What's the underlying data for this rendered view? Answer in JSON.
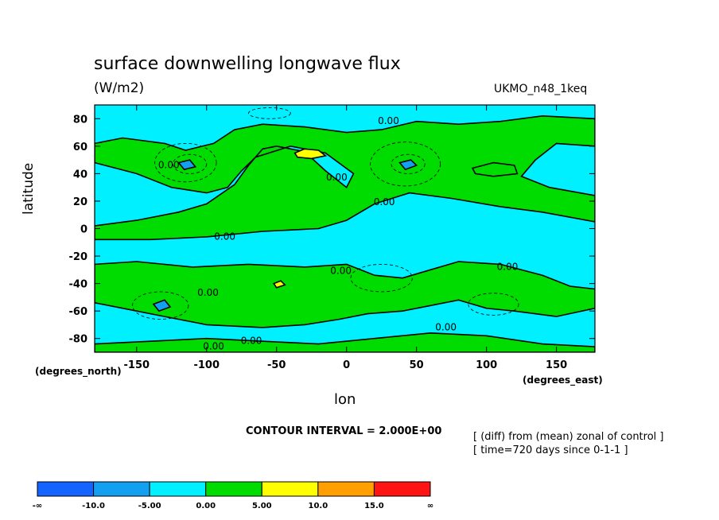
{
  "chart_data": {
    "type": "heatmap",
    "title": "surface downwelling longwave flux",
    "units": "(W/m2)",
    "model": "UKMO_n48_1keq",
    "xlabel": "lon",
    "ylabel": "latitude",
    "x_unit_label": "(degrees_east)",
    "y_unit_label": "(degrees_north)",
    "xlim": [
      -180,
      177.5
    ],
    "ylim": [
      -90,
      90
    ],
    "x_ticks": [
      -150,
      -100,
      -50,
      0,
      50,
      100,
      150
    ],
    "x_tick_labels": [
      "-150",
      "-100",
      "-50",
      "0",
      "50",
      "100",
      "150"
    ],
    "y_ticks": [
      80,
      60,
      40,
      20,
      0,
      -20,
      -40,
      -60,
      -80
    ],
    "y_tick_labels": [
      "80",
      "60",
      "40",
      "20",
      "0",
      "-20",
      "-40",
      "-60",
      "-80"
    ],
    "contour_interval_text": "CONTOUR INTERVAL = 2.000E+00",
    "notes": [
      "[ (diff) from (mean) zonal of control ]",
      "[ time=720 days since 0-1-1 ]"
    ],
    "contour_label": "0.00",
    "colorbar": {
      "bins": [
        {
          "color": "#1464ff",
          "range": [
            "-∞",
            "-10.0"
          ]
        },
        {
          "color": "#14a0f0",
          "range": [
            "-10.0",
            "-5.00"
          ]
        },
        {
          "color": "#00f0ff",
          "range": [
            "-5.00",
            "0.00"
          ]
        },
        {
          "color": "#00dc00",
          "range": [
            "0.00",
            "5.00"
          ]
        },
        {
          "color": "#ffff00",
          "range": [
            "5.00",
            "10.0"
          ]
        },
        {
          "color": "#ffa000",
          "range": [
            "10.0",
            "15.0"
          ]
        },
        {
          "color": "#ff1414",
          "range": [
            "15.0",
            "∞"
          ]
        }
      ],
      "labels": [
        "-∞",
        "-10.0",
        "-5.00",
        "0.00",
        "5.00",
        "10.0",
        "15.0",
        "∞"
      ]
    },
    "regions": [
      {
        "level": "positive",
        "value": 2.5,
        "pts": [
          [
            -180,
            62
          ],
          [
            -160,
            66
          ],
          [
            -130,
            62
          ],
          [
            -115,
            57
          ],
          [
            -95,
            62
          ],
          [
            -80,
            72
          ],
          [
            -60,
            76
          ],
          [
            -30,
            74
          ],
          [
            0,
            70
          ],
          [
            25,
            72
          ],
          [
            50,
            78
          ],
          [
            80,
            76
          ],
          [
            110,
            78
          ],
          [
            140,
            82
          ],
          [
            177.5,
            80
          ],
          [
            177.5,
            60
          ],
          [
            150,
            62
          ],
          [
            135,
            50
          ],
          [
            125,
            38
          ],
          [
            145,
            30
          ],
          [
            177.5,
            24
          ],
          [
            177.5,
            5
          ],
          [
            140,
            12
          ],
          [
            110,
            16
          ],
          [
            75,
            22
          ],
          [
            45,
            26
          ],
          [
            20,
            18
          ],
          [
            0,
            6
          ],
          [
            -20,
            0
          ],
          [
            -60,
            -2
          ],
          [
            -100,
            -6
          ],
          [
            -140,
            -8
          ],
          [
            -180,
            -8
          ],
          [
            -180,
            2
          ],
          [
            -150,
            6
          ],
          [
            -120,
            12
          ],
          [
            -100,
            18
          ],
          [
            -80,
            32
          ],
          [
            -70,
            46
          ],
          [
            -60,
            58
          ],
          [
            -50,
            60
          ],
          [
            -30,
            56
          ],
          [
            -15,
            42
          ],
          [
            0,
            30
          ],
          [
            5,
            40
          ],
          [
            -15,
            55
          ],
          [
            -40,
            60
          ],
          [
            -65,
            52
          ],
          [
            -75,
            42
          ],
          [
            -85,
            30
          ],
          [
            -100,
            26
          ],
          [
            -125,
            30
          ],
          [
            -150,
            40
          ],
          [
            -180,
            48
          ]
        ]
      },
      {
        "level": "positive",
        "value": 2.5,
        "pts": [
          [
            -180,
            -26
          ],
          [
            -150,
            -24
          ],
          [
            -110,
            -28
          ],
          [
            -70,
            -26
          ],
          [
            -30,
            -28
          ],
          [
            0,
            -26
          ],
          [
            10,
            -30
          ],
          [
            20,
            -34
          ],
          [
            40,
            -36
          ],
          [
            60,
            -30
          ],
          [
            80,
            -24
          ],
          [
            110,
            -26
          ],
          [
            140,
            -34
          ],
          [
            160,
            -42
          ],
          [
            177.5,
            -44
          ],
          [
            177.5,
            -58
          ],
          [
            150,
            -64
          ],
          [
            120,
            -60
          ],
          [
            100,
            -58
          ],
          [
            80,
            -52
          ],
          [
            60,
            -56
          ],
          [
            40,
            -60
          ],
          [
            15,
            -62
          ],
          [
            -5,
            -66
          ],
          [
            -30,
            -70
          ],
          [
            -60,
            -72
          ],
          [
            -100,
            -70
          ],
          [
            -130,
            -64
          ],
          [
            -160,
            -58
          ],
          [
            -180,
            -54
          ]
        ]
      },
      {
        "level": "positive",
        "value": 2.5,
        "pts": [
          [
            -180,
            -84
          ],
          [
            -140,
            -82
          ],
          [
            -100,
            -80
          ],
          [
            -60,
            -82
          ],
          [
            -20,
            -84
          ],
          [
            20,
            -80
          ],
          [
            60,
            -76
          ],
          [
            100,
            -78
          ],
          [
            140,
            -84
          ],
          [
            177.5,
            -86
          ],
          [
            177.5,
            -90
          ],
          [
            -180,
            -90
          ]
        ]
      },
      {
        "level": "positive",
        "value": 2.5,
        "pts": [
          [
            90,
            44
          ],
          [
            105,
            48
          ],
          [
            120,
            46
          ],
          [
            122,
            40
          ],
          [
            105,
            38
          ],
          [
            92,
            40
          ]
        ]
      },
      {
        "level": "high",
        "value": 7.5,
        "pts": [
          [
            -37,
            55
          ],
          [
            -30,
            58
          ],
          [
            -20,
            57
          ],
          [
            -15,
            53
          ],
          [
            -25,
            51
          ],
          [
            -35,
            52
          ]
        ]
      },
      {
        "level": "high",
        "value": 7.5,
        "pts": [
          [
            -52,
            -40
          ],
          [
            -47,
            -38
          ],
          [
            -44,
            -41
          ],
          [
            -50,
            -43
          ]
        ]
      },
      {
        "level": "low",
        "value": -7.5,
        "pts": [
          [
            -120,
            48
          ],
          [
            -112,
            50
          ],
          [
            -108,
            45
          ],
          [
            -116,
            43
          ]
        ]
      },
      {
        "level": "low",
        "value": -7.5,
        "pts": [
          [
            38,
            48
          ],
          [
            46,
            50
          ],
          [
            50,
            46
          ],
          [
            42,
            43
          ]
        ]
      },
      {
        "level": "low",
        "value": -7.5,
        "pts": [
          [
            -138,
            -55
          ],
          [
            -130,
            -52
          ],
          [
            -126,
            -57
          ],
          [
            -134,
            -60
          ]
        ]
      }
    ],
    "zero_contour_labels": [
      {
        "lon": 30,
        "lat": 76
      },
      {
        "lon": -127,
        "lat": 44
      },
      {
        "lon": -7,
        "lat": 35
      },
      {
        "lon": 27,
        "lat": 17
      },
      {
        "lon": -87,
        "lat": -8
      },
      {
        "lon": -4,
        "lat": -33
      },
      {
        "lon": -99,
        "lat": -49
      },
      {
        "lon": 115,
        "lat": -30
      },
      {
        "lon": 71,
        "lat": -74
      },
      {
        "lon": -68,
        "lat": -84
      },
      {
        "lon": -95,
        "lat": -88
      }
    ],
    "dashed_contours": [
      {
        "lon": -115,
        "lat": 48,
        "rx": 22,
        "ry": 14
      },
      {
        "lon": -112,
        "lat": 47,
        "rx": 12,
        "ry": 7
      },
      {
        "lon": 42,
        "lat": 47,
        "rx": 25,
        "ry": 16
      },
      {
        "lon": 44,
        "lat": 47,
        "rx": 12,
        "ry": 7
      },
      {
        "lon": -133,
        "lat": -56,
        "rx": 20,
        "ry": 10
      },
      {
        "lon": 25,
        "lat": -36,
        "rx": 22,
        "ry": 10
      },
      {
        "lon": 105,
        "lat": -55,
        "rx": 18,
        "ry": 8
      },
      {
        "lon": -55,
        "lat": 84,
        "rx": 15,
        "ry": 4
      }
    ]
  }
}
